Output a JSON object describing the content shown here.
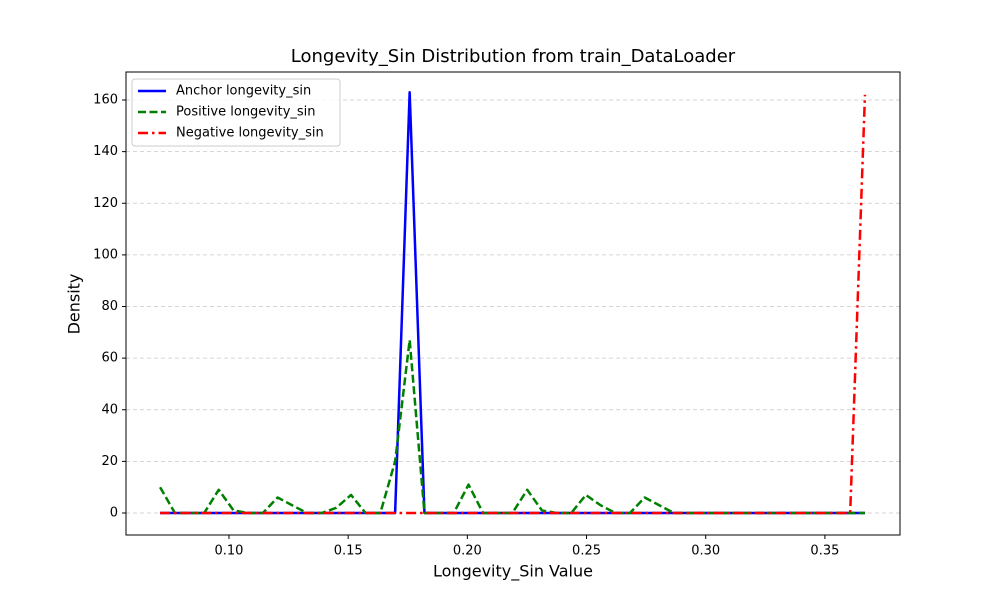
{
  "chart_data": {
    "type": "line",
    "title": "Longevity_Sin Distribution from train_DataLoader",
    "x_label": "Longevity_Sin Value",
    "y_label": "Density",
    "x": [
      0.0711,
      0.0773,
      0.0834,
      0.0896,
      0.0957,
      0.1019,
      0.1081,
      0.1142,
      0.1204,
      0.1265,
      0.1327,
      0.1389,
      0.145,
      0.1512,
      0.1573,
      0.1635,
      0.1697,
      0.1758,
      0.182,
      0.1881,
      0.1943,
      0.2005,
      0.2066,
      0.2128,
      0.2189,
      0.2251,
      0.2313,
      0.2374,
      0.2436,
      0.2497,
      0.2559,
      0.2621,
      0.2682,
      0.2744,
      0.2805,
      0.2867,
      0.2929,
      0.299,
      0.3052,
      0.3113,
      0.3175,
      0.3237,
      0.3298,
      0.336,
      0.3421,
      0.3483,
      0.3545,
      0.3606,
      0.3668
    ],
    "series": [
      {
        "name": "Anchor longevity_sin",
        "color": "#0000ff",
        "style": "solid",
        "values": [
          0,
          0,
          0,
          0,
          0,
          0,
          0,
          0,
          0,
          0,
          0,
          0,
          0,
          0,
          0,
          0,
          0,
          163,
          0,
          0,
          0,
          0,
          0,
          0,
          0,
          0,
          0,
          0,
          0,
          0,
          0,
          0,
          0,
          0,
          0,
          0,
          0,
          0,
          0,
          0,
          0,
          0,
          0,
          0,
          0,
          0,
          0,
          0,
          0
        ]
      },
      {
        "name": "Positive longevity_sin",
        "color": "#008000",
        "style": "dashed",
        "values": [
          10,
          0,
          0,
          0,
          9,
          1,
          0,
          0,
          6,
          3,
          0,
          0,
          2,
          7,
          0,
          0,
          20,
          67,
          0,
          0,
          0,
          11,
          0,
          0,
          0,
          9,
          1,
          0,
          0,
          7,
          3,
          0,
          0,
          6,
          3,
          0,
          0,
          0,
          0,
          0,
          0,
          0,
          0,
          0,
          0,
          0,
          0,
          0,
          0
        ]
      },
      {
        "name": "Negative longevity_sin",
        "color": "#ff0000",
        "style": "dashdot",
        "values": [
          0,
          0,
          0,
          0,
          0,
          0,
          0,
          0,
          0,
          0,
          0,
          0,
          0,
          0,
          0,
          0,
          0,
          0,
          0,
          0,
          0,
          0,
          0,
          0,
          0,
          0,
          0,
          0,
          0,
          0,
          0,
          0,
          0,
          0,
          0,
          0,
          0,
          0,
          0,
          0,
          0,
          0,
          0,
          0,
          0,
          0,
          0,
          0,
          162
        ]
      }
    ],
    "xlim": [
      0.0568,
      0.3815
    ],
    "ylim": [
      -8.52,
      170.85
    ],
    "xticks": [
      {
        "value": 0.1,
        "label": "0.10"
      },
      {
        "value": 0.15,
        "label": "0.15"
      },
      {
        "value": 0.2,
        "label": "0.20"
      },
      {
        "value": 0.25,
        "label": "0.25"
      },
      {
        "value": 0.3,
        "label": "0.30"
      },
      {
        "value": 0.35,
        "label": "0.35"
      }
    ],
    "yticks": [
      0,
      20,
      40,
      60,
      80,
      100,
      120,
      140,
      160
    ],
    "grid": true,
    "legend": "upper-left"
  }
}
